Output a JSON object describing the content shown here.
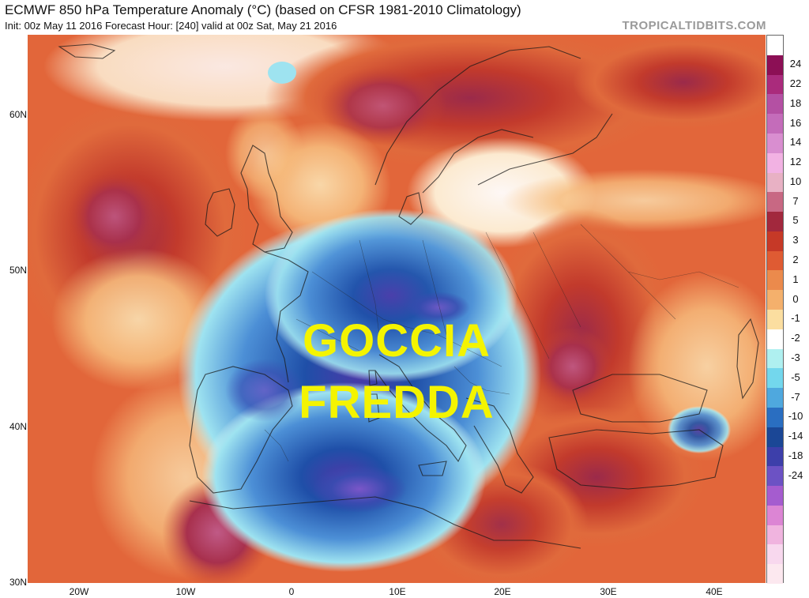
{
  "header": {
    "title": "ECMWF 850 hPa Temperature Anomaly (°C) (based on CFSR 1981-2010 Climatology)",
    "subtitle": "Init: 00z May 11 2016   Forecast Hour: [240]   valid at 00z Sat, May 21 2016",
    "brand": "TROPICALTIDBITS.COM"
  },
  "overlay": {
    "line1": "GOCCIA",
    "line2": "FREDDA"
  },
  "axes": {
    "lat_labels": [
      "60N",
      "50N",
      "40N",
      "30N"
    ],
    "lon_labels": [
      "20W",
      "10W",
      "0",
      "10E",
      "20E",
      "30E",
      "40E"
    ]
  },
  "colorbar": {
    "labels": [
      "24",
      "22",
      "18",
      "16",
      "14",
      "12",
      "10",
      "7",
      "5",
      "3",
      "2",
      "1",
      "0",
      "-1",
      "-2",
      "-3",
      "-5",
      "-7",
      "-10",
      "-14",
      "-18",
      "-24"
    ],
    "colors": [
      "#ffffff",
      "#8c0f55",
      "#aa2b7c",
      "#b450a3",
      "#c46cba",
      "#d98ed0",
      "#f2b2e3",
      "#e8b1c4",
      "#c86883",
      "#a2283d",
      "#c63927",
      "#df5b33",
      "#eb8a4c",
      "#f4b06c",
      "#fbdea0",
      "#ffffff",
      "#aff0f0",
      "#73d7ed",
      "#4fa8de",
      "#2a6ec1",
      "#1b4796",
      "#3d3faa",
      "#6c52c4",
      "#a55ccf",
      "#dc85d4",
      "#f0b4df",
      "#f8d8ee",
      "#fce8ef"
    ]
  }
}
